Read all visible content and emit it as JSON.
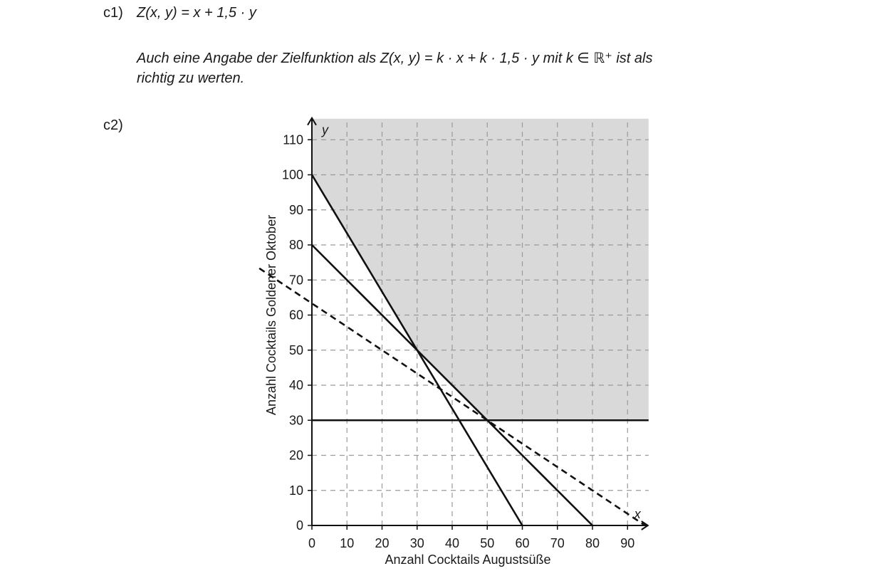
{
  "c1": {
    "label": "c1)",
    "formula": "Z(x, y) = x + 1,5 · y",
    "note_line1": "Auch eine Angabe der Zielfunktion als  Z(x, y) = k · x + k · 1,5 · y  mit  k ∈ ℝ⁺ ist als",
    "note_line2": "richtig zu werten."
  },
  "c2": {
    "label": "c2)"
  },
  "chart_data": {
    "type": "line",
    "xlabel": "Anzahl Cocktails Augustsüße",
    "ylabel": "Anzahl Cocktails Goldener Oktober",
    "x_axis_symbol": "x",
    "y_axis_symbol": "y",
    "xlim": [
      0,
      96
    ],
    "ylim": [
      0,
      116
    ],
    "x_ticks": [
      0,
      10,
      20,
      30,
      40,
      50,
      60,
      70,
      80,
      90
    ],
    "y_ticks": [
      0,
      10,
      20,
      30,
      40,
      50,
      60,
      70,
      80,
      90,
      100,
      110
    ],
    "grid": true,
    "feasible_region": {
      "color": "#d9d9d9",
      "polygon": [
        [
          0,
          116
        ],
        [
          0,
          100
        ],
        [
          30,
          50
        ],
        [
          50,
          30
        ],
        [
          96,
          30
        ],
        [
          96,
          116
        ]
      ]
    },
    "series": [
      {
        "style": "solid",
        "points": [
          [
            0,
            100
          ],
          [
            60,
            0
          ]
        ]
      },
      {
        "style": "solid",
        "points": [
          [
            0,
            80
          ],
          [
            80,
            0
          ]
        ]
      },
      {
        "style": "solid",
        "points": [
          [
            0,
            30
          ],
          [
            96,
            30
          ]
        ]
      },
      {
        "style": "dashed",
        "points": [
          [
            -15,
            73.33
          ],
          [
            95,
            0
          ]
        ]
      }
    ]
  }
}
